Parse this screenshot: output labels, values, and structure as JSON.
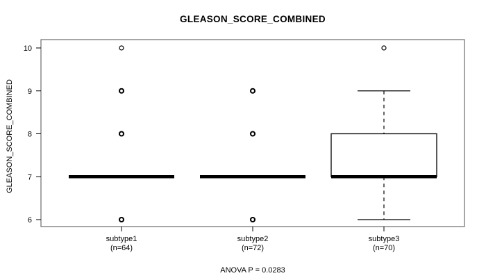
{
  "chart_data": {
    "type": "boxplot",
    "title": "GLEASON_SCORE_COMBINED",
    "ylabel": "GLEASON_SCORE_COMBINED",
    "annotation": "ANOVA P = 0.0283",
    "yticks": [
      6,
      7,
      8,
      9,
      10
    ],
    "ylim": [
      5.84,
      10.19
    ],
    "grid": false,
    "groups": [
      {
        "label": "subtype1",
        "sublabel": "(n=64)",
        "n": 64,
        "median": 7,
        "q1": 7,
        "q3": 7,
        "whisker_low": 7,
        "whisker_high": 7,
        "outliers": [
          {
            "value": 6,
            "heavy": true
          },
          {
            "value": 8,
            "heavy": true
          },
          {
            "value": 9,
            "heavy": true
          },
          {
            "value": 10,
            "heavy": false
          }
        ]
      },
      {
        "label": "subtype2",
        "sublabel": "(n=72)",
        "n": 72,
        "median": 7,
        "q1": 7,
        "q3": 7,
        "whisker_low": 7,
        "whisker_high": 7,
        "outliers": [
          {
            "value": 6,
            "heavy": true
          },
          {
            "value": 8,
            "heavy": true
          },
          {
            "value": 9,
            "heavy": true
          }
        ]
      },
      {
        "label": "subtype3",
        "sublabel": "(n=70)",
        "n": 70,
        "median": 7,
        "q1": 7,
        "q3": 8,
        "whisker_low": 6,
        "whisker_high": 9,
        "outliers": [
          {
            "value": 10,
            "heavy": false
          }
        ]
      }
    ],
    "colors": {
      "line": "#000000",
      "box_border": "#000000",
      "frame": "#4d4d4d",
      "background": "#ffffff"
    }
  }
}
